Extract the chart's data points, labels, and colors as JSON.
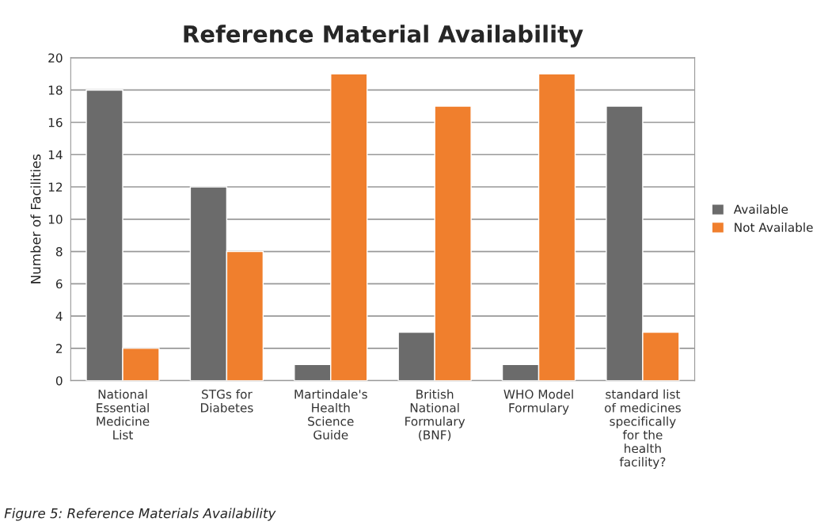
{
  "chart_data": {
    "type": "bar",
    "title": "Reference Material Availability",
    "categories": [
      "National\nEssential\nMedicine\nList",
      "STGs for\nDiabetes",
      "Martindale's\nHealth\nScience\nGuide",
      "British\nNational\nFormulary\n(BNF)",
      "WHO Model\nFormulary",
      "standard list\nof medicines\nspecifically\nfor the\nhealth\nfacility?"
    ],
    "series": [
      {
        "name": "Available",
        "color": "#6b6b6b",
        "values": [
          18,
          12,
          1,
          3,
          1,
          17
        ]
      },
      {
        "name": "Not Available",
        "color": "#f07f2d",
        "values": [
          2,
          8,
          19,
          17,
          19,
          3
        ]
      }
    ],
    "ylabel": "Number of Facilities",
    "ylim": [
      0,
      20
    ],
    "yticks": [
      0,
      2,
      4,
      6,
      8,
      10,
      12,
      14,
      16,
      18,
      20
    ],
    "grid": "y",
    "legend": "right",
    "annotations": [
      "Figure 5: Reference Materials Availability"
    ]
  }
}
